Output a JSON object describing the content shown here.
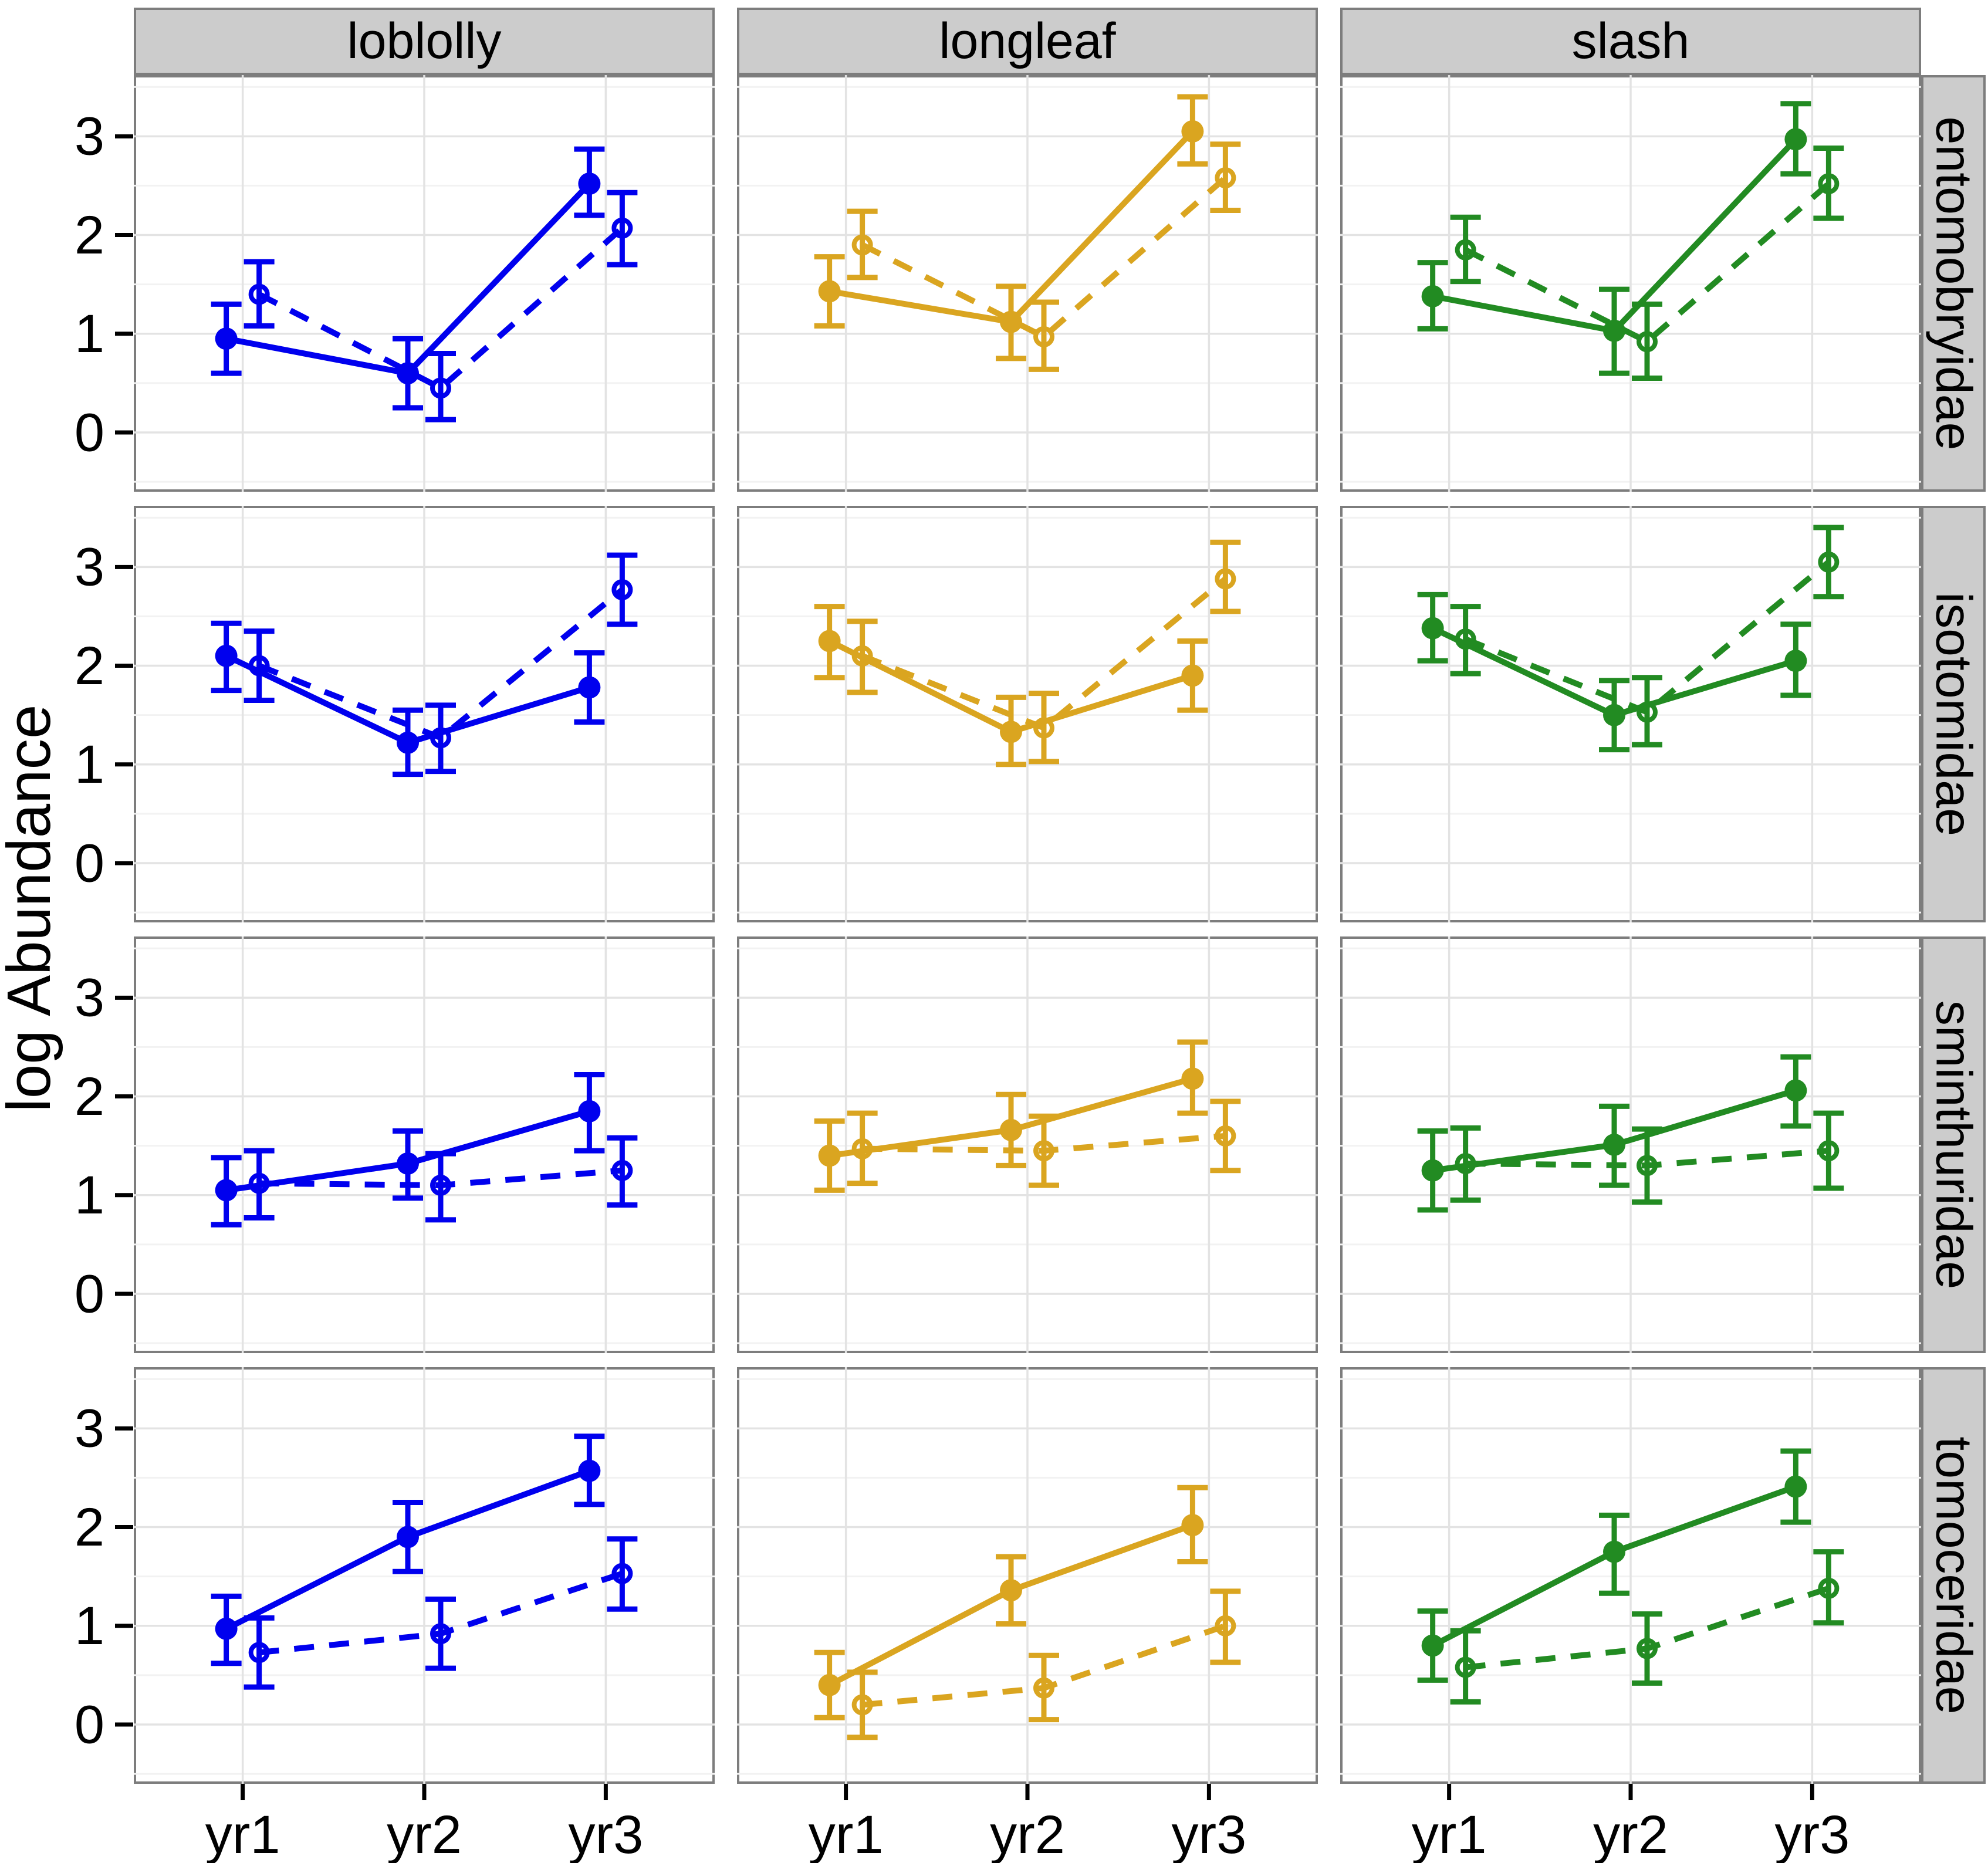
{
  "chart_data": {
    "type": "line",
    "title": "",
    "ylabel": "log Abundance",
    "xlabel": "",
    "x_categories": [
      "yr1",
      "yr2",
      "yr3"
    ],
    "y_ticks": [
      0,
      1,
      2,
      3
    ],
    "ylim": [
      -0.6,
      3.62
    ],
    "grid": {
      "major": [
        0,
        1,
        2,
        3
      ],
      "minor": [
        -0.5,
        0.5,
        1.5,
        2.5,
        3.5
      ],
      "vertical_major_at_x": true
    },
    "legend_position": "none",
    "facet_rows": [
      "entomobryidae",
      "isotomidae",
      "sminthuridae",
      "tomoceridae"
    ],
    "facet_cols": [
      {
        "label": "loblolly",
        "color": "#0000EE"
      },
      {
        "label": "longleaf",
        "color": "#DAA520"
      },
      {
        "label": "slash",
        "color": "#228B22"
      }
    ],
    "series_styles": [
      {
        "id": "solid",
        "line": "solid",
        "marker": "filled-circle"
      },
      {
        "id": "dashed",
        "line": "dashed",
        "marker": "open-circle"
      }
    ],
    "style_colors": {
      "strip_bg": "#CCCCCC",
      "strip_border": "#7D7D7D",
      "panel_border": "#7D7D7D",
      "grid_major": "#E3E3E3",
      "grid_minor": "#F2F2F2",
      "tick": "#000000"
    },
    "panels": [
      {
        "row": "entomobryidae",
        "col": "loblolly",
        "solid": {
          "y": [
            0.95,
            0.6,
            2.52
          ],
          "lo": [
            0.6,
            0.25,
            2.2
          ],
          "hi": [
            1.3,
            0.95,
            2.87
          ]
        },
        "dashed": {
          "y": [
            1.4,
            0.45,
            2.07
          ],
          "lo": [
            1.08,
            0.13,
            1.7
          ],
          "hi": [
            1.73,
            0.8,
            2.43
          ]
        }
      },
      {
        "row": "entomobryidae",
        "col": "longleaf",
        "solid": {
          "y": [
            1.43,
            1.12,
            3.05
          ],
          "lo": [
            1.08,
            0.75,
            2.72
          ],
          "hi": [
            1.78,
            1.48,
            3.4
          ]
        },
        "dashed": {
          "y": [
            1.9,
            0.97,
            2.58
          ],
          "lo": [
            1.57,
            0.64,
            2.25
          ],
          "hi": [
            2.24,
            1.32,
            2.92
          ]
        }
      },
      {
        "row": "entomobryidae",
        "col": "slash",
        "solid": {
          "y": [
            1.38,
            1.03,
            2.97
          ],
          "lo": [
            1.05,
            0.6,
            2.62
          ],
          "hi": [
            1.72,
            1.45,
            3.33
          ]
        },
        "dashed": {
          "y": [
            1.85,
            0.92,
            2.52
          ],
          "lo": [
            1.53,
            0.55,
            2.17
          ],
          "hi": [
            2.18,
            1.3,
            2.88
          ]
        }
      },
      {
        "row": "isotomidae",
        "col": "loblolly",
        "solid": {
          "y": [
            2.1,
            1.22,
            1.78
          ],
          "lo": [
            1.75,
            0.9,
            1.43
          ],
          "hi": [
            2.43,
            1.55,
            2.13
          ]
        },
        "dashed": {
          "y": [
            2.0,
            1.27,
            2.77
          ],
          "lo": [
            1.65,
            0.93,
            2.42
          ],
          "hi": [
            2.35,
            1.6,
            3.12
          ]
        }
      },
      {
        "row": "isotomidae",
        "col": "longleaf",
        "solid": {
          "y": [
            2.25,
            1.33,
            1.9
          ],
          "lo": [
            1.88,
            1.0,
            1.55
          ],
          "hi": [
            2.6,
            1.68,
            2.25
          ]
        },
        "dashed": {
          "y": [
            2.1,
            1.37,
            2.88
          ],
          "lo": [
            1.73,
            1.03,
            2.55
          ],
          "hi": [
            2.45,
            1.72,
            3.25
          ]
        }
      },
      {
        "row": "isotomidae",
        "col": "slash",
        "solid": {
          "y": [
            2.38,
            1.5,
            2.05
          ],
          "lo": [
            2.05,
            1.15,
            1.7
          ],
          "hi": [
            2.72,
            1.85,
            2.42
          ]
        },
        "dashed": {
          "y": [
            2.27,
            1.53,
            3.05
          ],
          "lo": [
            1.92,
            1.2,
            2.7
          ],
          "hi": [
            2.6,
            1.88,
            3.4
          ]
        }
      },
      {
        "row": "sminthuridae",
        "col": "loblolly",
        "solid": {
          "y": [
            1.05,
            1.32,
            1.85
          ],
          "lo": [
            0.7,
            0.97,
            1.45
          ],
          "hi": [
            1.38,
            1.65,
            2.22
          ]
        },
        "dashed": {
          "y": [
            1.12,
            1.1,
            1.25
          ],
          "lo": [
            0.77,
            0.75,
            0.9
          ],
          "hi": [
            1.45,
            1.42,
            1.58
          ]
        }
      },
      {
        "row": "sminthuridae",
        "col": "longleaf",
        "solid": {
          "y": [
            1.4,
            1.66,
            2.18
          ],
          "lo": [
            1.05,
            1.3,
            1.83
          ],
          "hi": [
            1.75,
            2.02,
            2.55
          ]
        },
        "dashed": {
          "y": [
            1.47,
            1.45,
            1.6
          ],
          "lo": [
            1.12,
            1.1,
            1.25
          ],
          "hi": [
            1.83,
            1.8,
            1.95
          ]
        }
      },
      {
        "row": "sminthuridae",
        "col": "slash",
        "solid": {
          "y": [
            1.25,
            1.51,
            2.06
          ],
          "lo": [
            0.85,
            1.1,
            1.7
          ],
          "hi": [
            1.65,
            1.9,
            2.4
          ]
        },
        "dashed": {
          "y": [
            1.32,
            1.3,
            1.45
          ],
          "lo": [
            0.95,
            0.93,
            1.07
          ],
          "hi": [
            1.68,
            1.67,
            1.83
          ]
        }
      },
      {
        "row": "tomoceridae",
        "col": "loblolly",
        "solid": {
          "y": [
            0.97,
            1.9,
            2.57
          ],
          "lo": [
            0.62,
            1.55,
            2.23
          ],
          "hi": [
            1.3,
            2.25,
            2.92
          ]
        },
        "dashed": {
          "y": [
            0.73,
            0.92,
            1.53
          ],
          "lo": [
            0.38,
            0.57,
            1.17
          ],
          "hi": [
            1.08,
            1.27,
            1.88
          ]
        }
      },
      {
        "row": "tomoceridae",
        "col": "longleaf",
        "solid": {
          "y": [
            0.4,
            1.36,
            2.02
          ],
          "lo": [
            0.07,
            1.02,
            1.65
          ],
          "hi": [
            0.73,
            1.7,
            2.4
          ]
        },
        "dashed": {
          "y": [
            0.2,
            0.37,
            1.0
          ],
          "lo": [
            -0.13,
            0.05,
            0.63
          ],
          "hi": [
            0.53,
            0.7,
            1.35
          ]
        }
      },
      {
        "row": "tomoceridae",
        "col": "slash",
        "solid": {
          "y": [
            0.8,
            1.75,
            2.41
          ],
          "lo": [
            0.45,
            1.33,
            2.05
          ],
          "hi": [
            1.15,
            2.12,
            2.77
          ]
        },
        "dashed": {
          "y": [
            0.58,
            0.77,
            1.38
          ],
          "lo": [
            0.23,
            0.42,
            1.03
          ],
          "hi": [
            0.95,
            1.12,
            1.75
          ]
        }
      }
    ]
  }
}
